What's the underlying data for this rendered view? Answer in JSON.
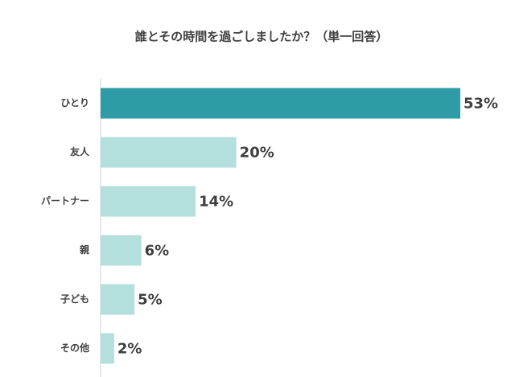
{
  "chart_data": {
    "type": "hbar",
    "title": "誰とその時間を過ごしましたか？（単一回答）",
    "categories": [
      "ひとり",
      "友人",
      "パートナー",
      "親",
      "子ども",
      "その他"
    ],
    "values": [
      53,
      20,
      14,
      6,
      5,
      2
    ],
    "value_labels": [
      "53%",
      "20%",
      "14%",
      "6%",
      "5%",
      "2%"
    ],
    "colors": [
      "#2e9ca6",
      "#b3dfdc",
      "#b3dfdc",
      "#b3dfdc",
      "#b3dfdc",
      "#b3dfdc"
    ]
  }
}
